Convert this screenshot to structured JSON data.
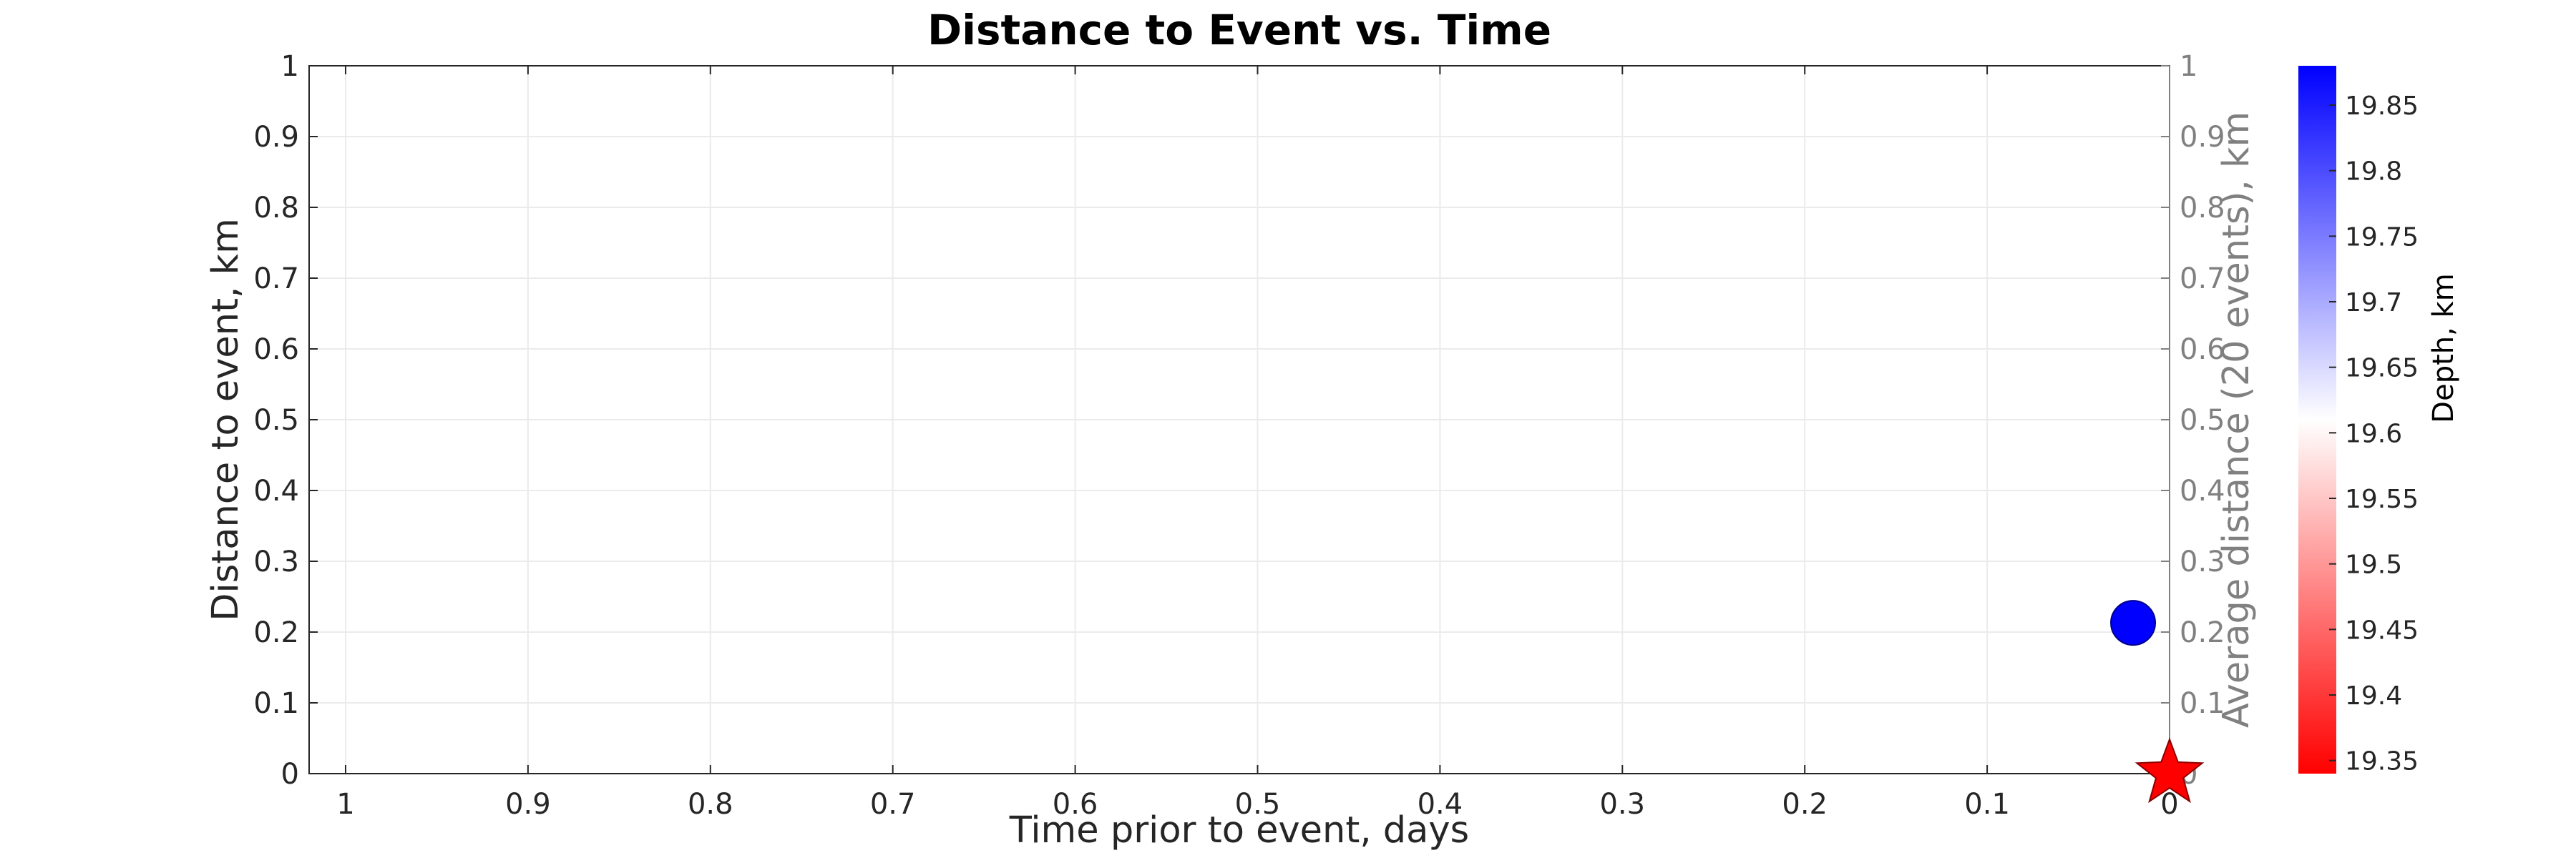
{
  "chart_data": {
    "type": "scatter",
    "title": "Distance to Event vs. Time",
    "xlabel": "Time prior to event, days",
    "ylabel": "Distance to event, km",
    "y2label": "Average distance (20 events), km",
    "xlim": [
      0,
      1.02
    ],
    "x_reversed": true,
    "ylim": [
      0,
      1
    ],
    "y2lim": [
      0,
      1
    ],
    "grid": true,
    "x_ticks": [
      "1",
      "0.9",
      "0.8",
      "0.7",
      "0.6",
      "0.5",
      "0.4",
      "0.3",
      "0.2",
      "0.1",
      "0"
    ],
    "x_tick_values": [
      1,
      0.9,
      0.8,
      0.7,
      0.6,
      0.5,
      0.4,
      0.3,
      0.2,
      0.1,
      0
    ],
    "y_ticks": [
      "0",
      "0.1",
      "0.2",
      "0.3",
      "0.4",
      "0.5",
      "0.6",
      "0.7",
      "0.8",
      "0.9",
      "1"
    ],
    "y_tick_values": [
      0,
      0.1,
      0.2,
      0.3,
      0.4,
      0.5,
      0.6,
      0.7,
      0.8,
      0.9,
      1
    ],
    "y2_ticks": [
      "0",
      "0.1",
      "0.2",
      "0.3",
      "0.4",
      "0.5",
      "0.6",
      "0.7",
      "0.8",
      "0.9",
      "1"
    ],
    "points": [
      {
        "x": 0.02,
        "y": 0.213,
        "depth": 19.88,
        "marker": "circle"
      }
    ],
    "mainshock": {
      "x": 0,
      "y": 0,
      "marker": "star",
      "color": "#ff0000"
    },
    "colorbar": {
      "label": "Depth, km",
      "range": [
        19.34,
        19.88
      ],
      "tick_values": [
        19.35,
        19.4,
        19.45,
        19.5,
        19.55,
        19.6,
        19.65,
        19.7,
        19.75,
        19.8,
        19.85
      ],
      "tick_labels": [
        "19.35",
        "19.4",
        "19.45",
        "19.5",
        "19.55",
        "19.6",
        "19.65",
        "19.7",
        "19.75",
        "19.8",
        "19.85"
      ],
      "color_low": "#ff0000",
      "color_mid": "#ffffff",
      "color_high": "#0000ff"
    },
    "colors": {
      "axis": "#262626",
      "right_axis": "#808080",
      "grid": "#ebebeb",
      "point": "#0000ff",
      "star": "#ff0000"
    }
  }
}
